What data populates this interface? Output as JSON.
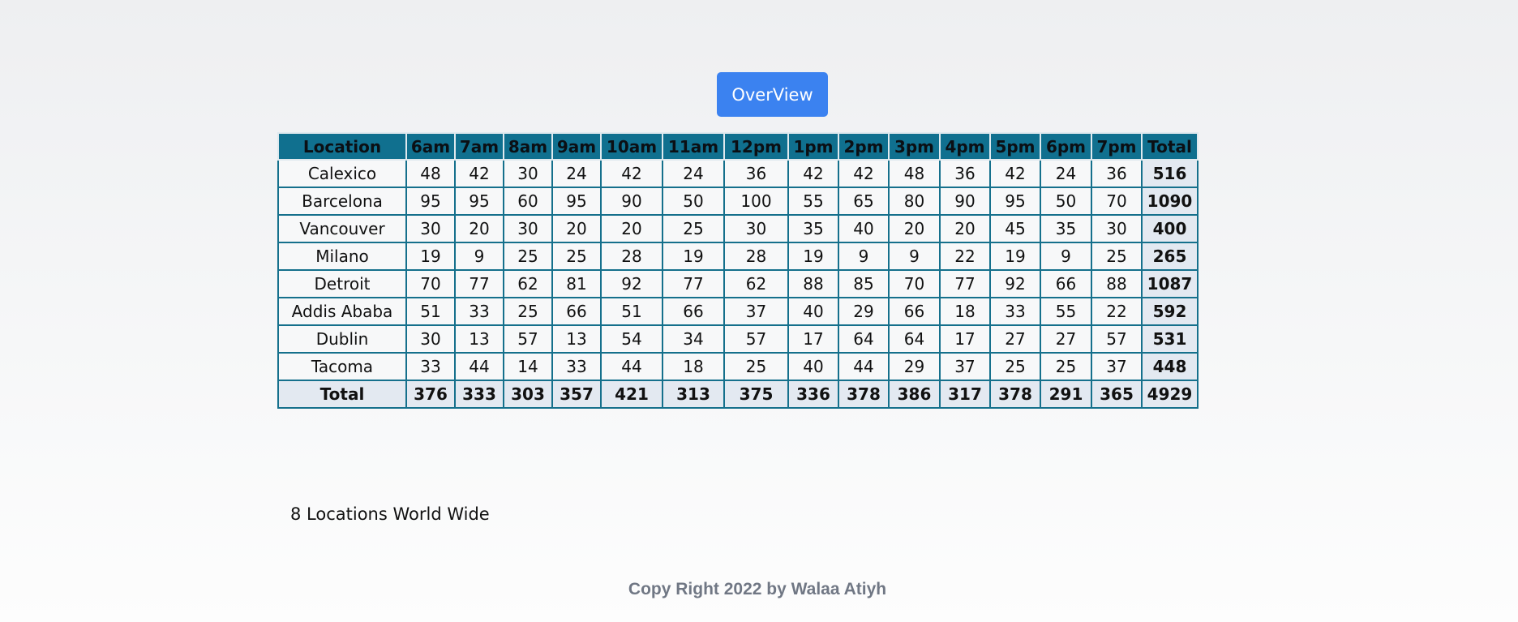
{
  "overview_button": "OverView",
  "table": {
    "headers": [
      "Location",
      "6am",
      "7am",
      "8am",
      "9am",
      "10am",
      "11am",
      "12pm",
      "1pm",
      "2pm",
      "3pm",
      "4pm",
      "5pm",
      "6pm",
      "7pm",
      "Total"
    ],
    "rows": [
      {
        "location": "Calexico",
        "values": [
          "48",
          "42",
          "30",
          "24",
          "42",
          "24",
          "36",
          "42",
          "42",
          "48",
          "36",
          "42",
          "24",
          "36"
        ],
        "total": "516"
      },
      {
        "location": "Barcelona",
        "values": [
          "95",
          "95",
          "60",
          "95",
          "90",
          "50",
          "100",
          "55",
          "65",
          "80",
          "90",
          "95",
          "50",
          "70"
        ],
        "total": "1090"
      },
      {
        "location": "Vancouver",
        "values": [
          "30",
          "20",
          "30",
          "20",
          "20",
          "25",
          "30",
          "35",
          "40",
          "20",
          "20",
          "45",
          "35",
          "30"
        ],
        "total": "400"
      },
      {
        "location": "Milano",
        "values": [
          "19",
          "9",
          "25",
          "25",
          "28",
          "19",
          "28",
          "19",
          "9",
          "9",
          "22",
          "19",
          "9",
          "25"
        ],
        "total": "265"
      },
      {
        "location": "Detroit",
        "values": [
          "70",
          "77",
          "62",
          "81",
          "92",
          "77",
          "62",
          "88",
          "85",
          "70",
          "77",
          "92",
          "66",
          "88"
        ],
        "total": "1087"
      },
      {
        "location": "Addis Ababa",
        "values": [
          "51",
          "33",
          "25",
          "66",
          "51",
          "66",
          "37",
          "40",
          "29",
          "66",
          "18",
          "33",
          "55",
          "22"
        ],
        "total": "592"
      },
      {
        "location": "Dublin",
        "values": [
          "30",
          "13",
          "57",
          "13",
          "54",
          "34",
          "57",
          "17",
          "64",
          "64",
          "17",
          "27",
          "27",
          "57"
        ],
        "total": "531"
      },
      {
        "location": "Tacoma",
        "values": [
          "33",
          "44",
          "14",
          "33",
          "44",
          "18",
          "25",
          "40",
          "44",
          "29",
          "37",
          "25",
          "25",
          "37"
        ],
        "total": "448"
      }
    ],
    "footer": {
      "label": "Total",
      "values": [
        "376",
        "333",
        "303",
        "357",
        "421",
        "313",
        "375",
        "336",
        "378",
        "386",
        "317",
        "378",
        "291",
        "365"
      ],
      "total": "4929"
    }
  },
  "caption": "8 Locations World Wide",
  "copyright": "Copy Right 2022 by Walaa Atiyh",
  "colors": {
    "button": "#3b82f0",
    "header": "#10708f",
    "border": "#15708c",
    "total_cell": "#e3e9f1"
  }
}
